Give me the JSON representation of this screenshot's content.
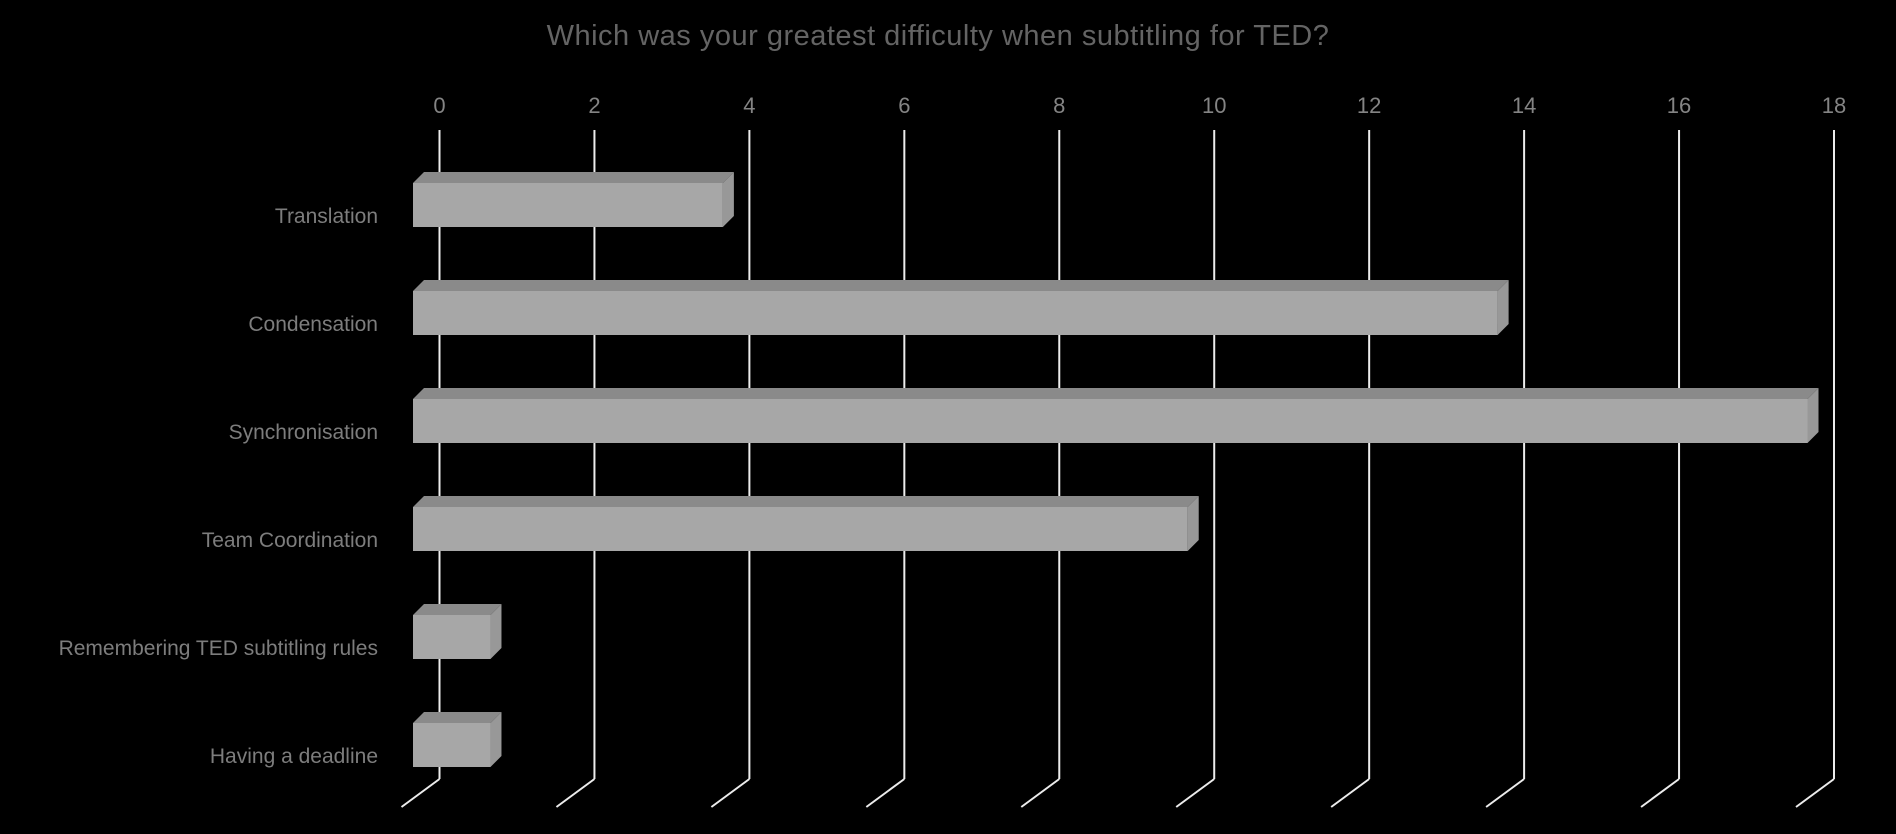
{
  "chart_data": {
    "type": "bar",
    "orientation": "horizontal",
    "style": "3d",
    "title": "Which was your greatest difficulty when subtitling for TED?",
    "categories": [
      "Translation",
      "Condensation",
      "Synchronisation",
      "Team Coordination",
      "Remembering TED subtitling rules",
      "Having a deadline"
    ],
    "values": [
      4,
      14,
      18,
      10,
      1,
      1
    ],
    "xlabel": "",
    "ylabel": "",
    "xlim": [
      0,
      18
    ],
    "x_ticks": [
      0,
      2,
      4,
      6,
      8,
      10,
      12,
      14,
      16,
      18
    ],
    "grid": true,
    "legend": false,
    "tick_position": "top",
    "colors": {
      "background": "#000000",
      "bar_front": "#a7a7a7",
      "bar_top": "#8a8a8a",
      "bar_side": "#989898",
      "gridline": "#ececec",
      "title_text": "#646464",
      "tick_text": "#848484",
      "category_text": "#7d7d7d"
    }
  }
}
